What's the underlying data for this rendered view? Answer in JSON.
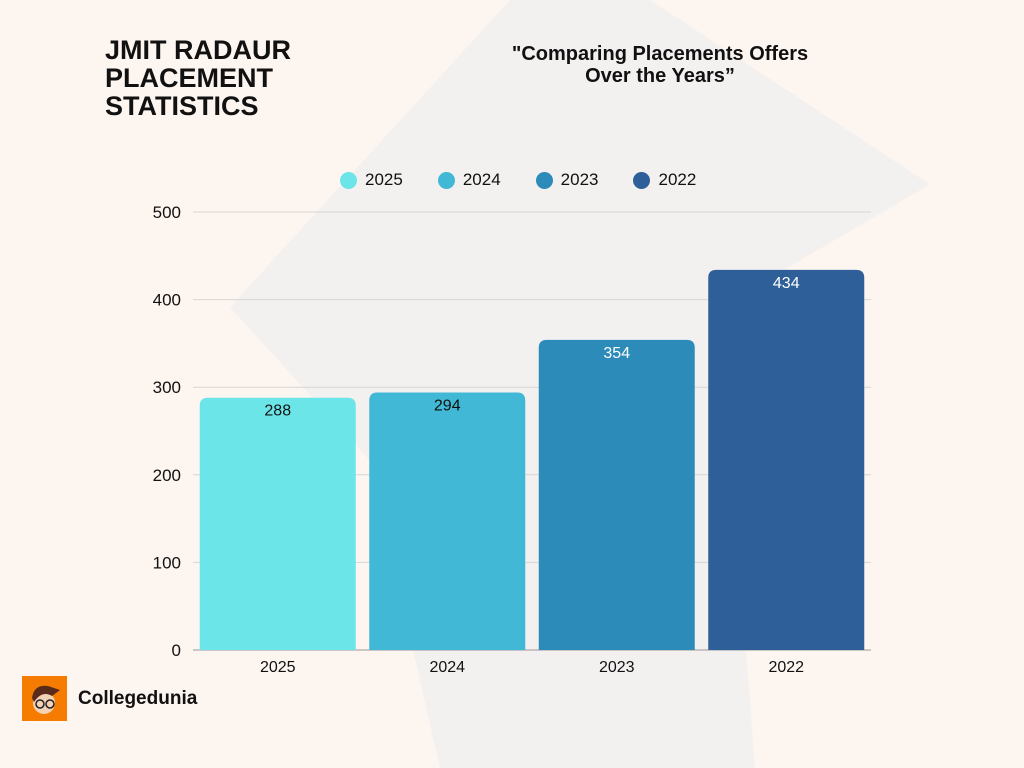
{
  "header": {
    "title_lines": [
      "JMIT RADAUR",
      "PLACEMENT",
      "STATISTICS"
    ],
    "subtitle_lines": [
      "\"Comparing Placements Offers",
      "Over the Years”"
    ]
  },
  "brand": {
    "name": "Collegedunia",
    "logo_color": "#f57c00"
  },
  "chart_data": {
    "type": "bar",
    "title": "\"Comparing Placements Offers Over the Years”",
    "categories": [
      "2025",
      "2024",
      "2023",
      "2022"
    ],
    "values": [
      288,
      294,
      354,
      434
    ],
    "colors": [
      "#6ce5e8",
      "#41b8d5",
      "#2d8bba",
      "#2f5f98"
    ],
    "label_colors": [
      "#111111",
      "#111111",
      "#ffffff",
      "#ffffff"
    ],
    "legend": [
      "2025",
      "2024",
      "2023",
      "2022"
    ],
    "legend_position": "top",
    "xlabel": "",
    "ylabel": "",
    "ylim": [
      0,
      500
    ],
    "yticks": [
      0,
      100,
      200,
      300,
      400,
      500
    ],
    "grid": true
  }
}
